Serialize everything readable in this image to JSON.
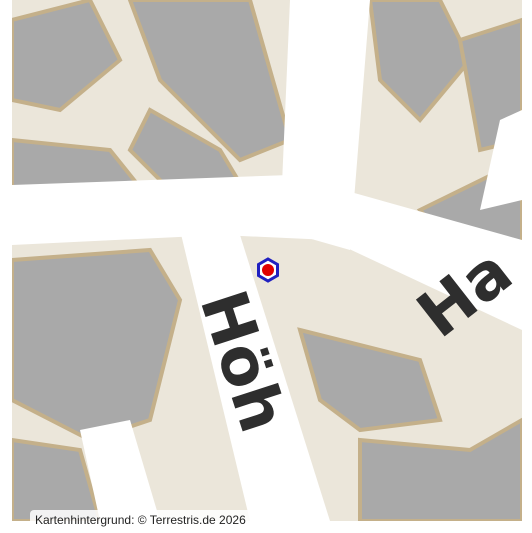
{
  "map": {
    "labels": [
      "Höh",
      "Ha"
    ],
    "attribution": "Kartenhintergrund: © Terrestris.de 2026"
  }
}
